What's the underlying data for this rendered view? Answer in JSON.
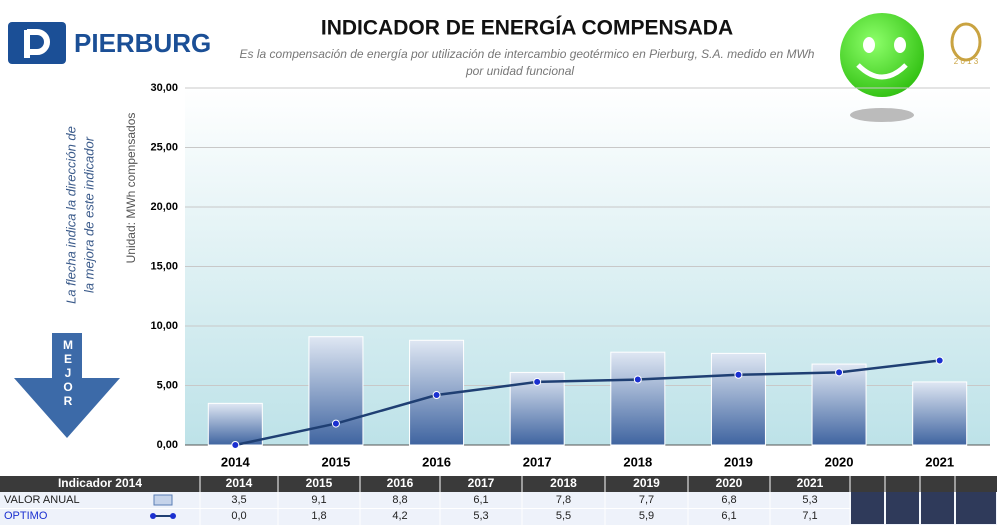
{
  "brand": "PIERBURG",
  "logo_year": "2 0 1 3",
  "side_note": [
    "La flecha indica la dirección de",
    "la mejora de este indicador"
  ],
  "arrow_label": "MEJOR",
  "table_header": "Indicador 2014",
  "chart_data": {
    "type": "bar",
    "title": "INDICADOR DE ENERGÍA COMPENSADA",
    "subtitle": [
      "Es la compensación de energía por utilización de intercambio geotérmico en Pierburg, S.A. medido en MWh",
      "por unidad funcional"
    ],
    "y_label": "Unidad: MWh compensados",
    "categories": [
      "2014",
      "2015",
      "2016",
      "2017",
      "2018",
      "2019",
      "2020",
      "2021"
    ],
    "series": [
      {
        "name": "VALOR ANUAL",
        "type": "bar",
        "color": "#5b7fb5",
        "values": [
          3.5,
          9.1,
          8.8,
          6.1,
          7.8,
          7.7,
          6.8,
          5.3
        ],
        "value_labels": [
          "3,5",
          "9,1",
          "8,8",
          "6,1",
          "7,8",
          "7,7",
          "6,8",
          "5,3"
        ]
      },
      {
        "name": "OPTIMO",
        "type": "line",
        "color": "#1f3f73",
        "values": [
          0.0,
          1.8,
          4.2,
          5.3,
          5.5,
          5.9,
          6.1,
          7.1
        ],
        "value_labels": [
          "0,0",
          "1,8",
          "4,2",
          "5,3",
          "5,5",
          "5,9",
          "6,1",
          "7,1"
        ]
      }
    ],
    "ylim": [
      0,
      30
    ],
    "yticks": [
      {
        "value": 0,
        "label": "0,00"
      },
      {
        "value": 5,
        "label": "5,00"
      },
      {
        "value": 10,
        "label": "10,00"
      },
      {
        "value": 15,
        "label": "15,00"
      },
      {
        "value": 20,
        "label": "20,00"
      },
      {
        "value": 25,
        "label": "25,00"
      },
      {
        "value": 30,
        "label": "30,00"
      }
    ],
    "grid": true
  }
}
